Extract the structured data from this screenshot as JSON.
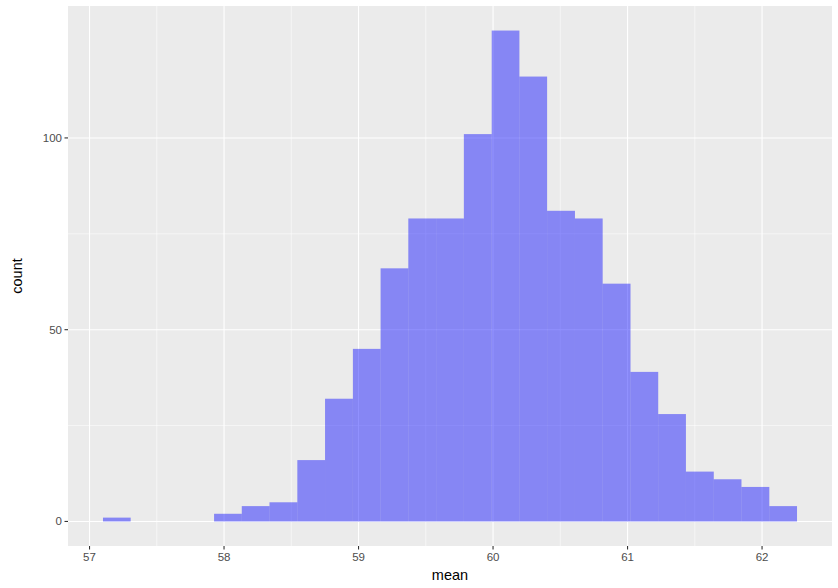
{
  "chart_data": {
    "type": "histogram",
    "x_label": "mean",
    "y_label": "count",
    "bins": [
      57.1,
      57.306,
      57.513,
      57.719,
      57.926,
      58.132,
      58.338,
      58.545,
      58.751,
      58.958,
      59.164,
      59.37,
      59.577,
      59.783,
      59.99,
      60.196,
      60.402,
      60.609,
      60.815,
      61.022,
      61.228,
      61.434,
      61.641,
      61.847,
      62.054,
      62.26
    ],
    "values": [
      1,
      0,
      0,
      0,
      2,
      4,
      5,
      16,
      32,
      45,
      66,
      79,
      79,
      101,
      128,
      116,
      81,
      79,
      62,
      39,
      28,
      13,
      11,
      9,
      4
    ],
    "color": "#0000ff",
    "xlim": [
      56.84,
      62.52
    ],
    "xticks": [
      57,
      58,
      59,
      60,
      61,
      62
    ],
    "ylim": [
      -6.4,
      134.4
    ],
    "yticks": [
      0,
      50,
      100
    ],
    "grid": true
  }
}
